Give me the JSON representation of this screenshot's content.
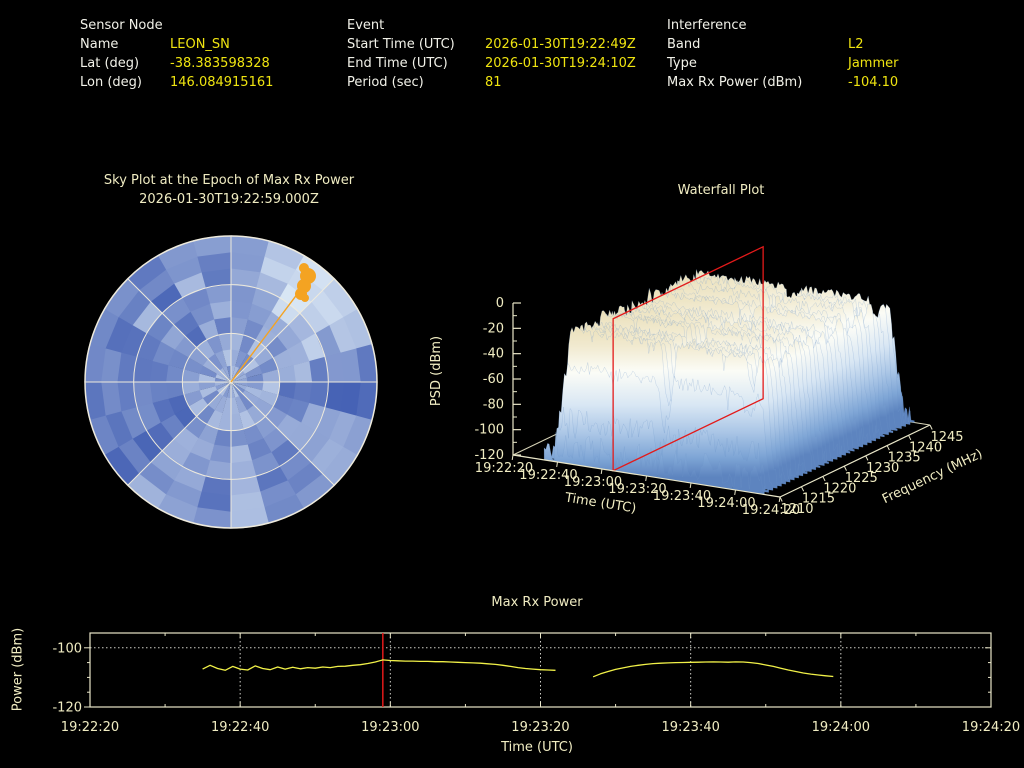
{
  "header": {
    "sensor": {
      "title": "Sensor Node",
      "rows": [
        {
          "label": "Name",
          "value": "LEON_SN"
        },
        {
          "label": "Lat (deg)",
          "value": "-38.383598328"
        },
        {
          "label": "Lon (deg)",
          "value": "146.084915161"
        }
      ]
    },
    "event": {
      "title": "Event",
      "rows": [
        {
          "label": "Start Time (UTC)",
          "value": "2026-01-30T19:22:49Z"
        },
        {
          "label": "End Time (UTC)",
          "value": "2026-01-30T19:24:10Z"
        },
        {
          "label": "Period (sec)",
          "value": "81"
        }
      ]
    },
    "interference": {
      "title": "Interference",
      "rows": [
        {
          "label": "Band",
          "value": "L2"
        },
        {
          "label": "Type",
          "value": "Jammer"
        },
        {
          "label": "Max Rx Power (dBm)",
          "value": "-104.10"
        }
      ]
    }
  },
  "sky": {
    "title_line1": "Sky Plot at the Epoch of Max Rx Power",
    "title_line2": "2026-01-30T19:22:59.000Z"
  },
  "waterfall": {
    "title": "Waterfall Plot",
    "zlabel": "PSD (dBm)",
    "xlabel": "Time (UTC)",
    "ylabel": "Frequency (MHz)"
  },
  "power": {
    "title": "Max Rx Power",
    "ylabel": "Power (dBm)",
    "xlabel": "Time (UTC)"
  },
  "colors": {
    "label_white": "#f2f2e9",
    "value_yellow": "#efe410",
    "cream": "#f0ecc2",
    "axis": "#e9e6c8",
    "grid_dotted": "#cfcfc8",
    "series_yellow": "#f1f148",
    "epoch_red": "#e31a1a",
    "sky_dark_blue": "#3c59b0",
    "sky_light_blue": "#ddeaf6",
    "marker_orange": "#f4a322",
    "surface_stops": [
      "#e8dcb2",
      "#f1ead0",
      "#fbfcf6",
      "#d9e7f4",
      "#adc8e7",
      "#7fa6d6",
      "#5d84bf"
    ]
  },
  "chart_data": [
    {
      "type": "heatmap",
      "name": "sky_plot_polar_heatmap",
      "title": "Sky Plot at the Epoch of Max Rx Power 2026-01-30T19:22:59.000Z",
      "coords": "polar azimuth(clockwise from North) x elevation",
      "elevation_rings_deg": [
        0,
        30,
        60
      ],
      "azimuth_spokes_deg_step": 45,
      "bins": {
        "azimuth": 24,
        "radial": 9
      },
      "cells": "procedural blue noise, seed 11, streaked by azimuth column",
      "palette": [
        "#3c59b0",
        "#ddeaf6"
      ],
      "jammer_marker": {
        "azimuth_deg": 37,
        "elevation_deg": 12,
        "radius_frac": 0.86,
        "color": "#f4a322",
        "ray_from_center": true
      }
    },
    {
      "type": "heatmap",
      "name": "waterfall_3d_surface",
      "title": "Waterfall Plot",
      "xlabel": "Time (UTC)",
      "ylabel": "Frequency (MHz)",
      "zlabel": "PSD (dBm)",
      "time_ticks": [
        "19:22:20",
        "19:22:40",
        "19:23:00",
        "19:23:20",
        "19:23:40",
        "19:24:00",
        "19:24:20"
      ],
      "freq_ticks": [
        "1210",
        "1215",
        "1220",
        "1225",
        "1230",
        "1235",
        "1240",
        "1245"
      ],
      "z_ticks": [
        "0",
        "-20",
        "-40",
        "-60",
        "-80",
        "-100",
        "-120"
      ],
      "zlim": [
        -120,
        0
      ],
      "freq_range_mhz": [
        1210,
        1245
      ],
      "surface": "plateau near -25 dBm PSD across 1213-1242 MHz from ~19:22:34 to ~19:24:07, noisy blue edges falling to -120, notch near 19:23:25",
      "epoch_slice": {
        "label": "red plane at epoch of max Rx power",
        "spans": "full frequency and PSD range",
        "color": "#e31a1a"
      },
      "gen": {
        "seed": 23,
        "rows": 36,
        "t_start_sec": 14,
        "t_end_sec": 113,
        "plateau_db_above_floor": 95,
        "gap_sec": [
          62,
          67
        ]
      }
    },
    {
      "type": "line",
      "name": "max_rx_power_timeseries",
      "title": "Max Rx Power",
      "xlabel": "Time (UTC)",
      "ylabel": "Power (dBm)",
      "x_ticks": [
        "19:22:20",
        "19:22:40",
        "19:23:00",
        "19:23:20",
        "19:23:40",
        "19:24:00",
        "19:24:20"
      ],
      "y_ticks": [
        -100,
        -120
      ],
      "ylim": [
        -120,
        -95
      ],
      "x_axis_seconds_after_192220": [
        0,
        120
      ],
      "epoch_line_t_sec": 39,
      "epoch_value_dbm": -104.1,
      "grid": "dotted at -100 dBm and at each 20 s tick",
      "segments": [
        {
          "points": [
            [
              15,
              -107.2
            ],
            [
              16,
              -105.9
            ],
            [
              17,
              -107.0
            ],
            [
              18,
              -107.6
            ],
            [
              19,
              -106.3
            ],
            [
              20,
              -107.2
            ],
            [
              21,
              -107.5
            ],
            [
              22,
              -106.1
            ],
            [
              23,
              -107.0
            ],
            [
              24,
              -107.4
            ],
            [
              25,
              -106.5
            ],
            [
              26,
              -107.2
            ],
            [
              27,
              -106.6
            ],
            [
              28,
              -107.1
            ],
            [
              29,
              -106.7
            ],
            [
              30,
              -106.9
            ],
            [
              31,
              -106.5
            ],
            [
              32,
              -106.7
            ],
            [
              33,
              -106.3
            ],
            [
              34,
              -106.2
            ],
            [
              35,
              -105.9
            ],
            [
              36,
              -105.7
            ],
            [
              37,
              -105.3
            ],
            [
              38,
              -104.8
            ],
            [
              39,
              -104.1
            ],
            [
              40,
              -104.3
            ],
            [
              41,
              -104.4
            ],
            [
              42,
              -104.5
            ],
            [
              43,
              -104.5
            ],
            [
              44,
              -104.6
            ],
            [
              45,
              -104.6
            ],
            [
              46,
              -104.7
            ],
            [
              47,
              -104.7
            ],
            [
              48,
              -104.8
            ],
            [
              49,
              -104.9
            ],
            [
              50,
              -105.0
            ],
            [
              51,
              -105.1
            ],
            [
              52,
              -105.2
            ],
            [
              53,
              -105.4
            ],
            [
              54,
              -105.6
            ],
            [
              55,
              -105.9
            ],
            [
              56,
              -106.3
            ],
            [
              57,
              -106.7
            ],
            [
              58,
              -107.0
            ],
            [
              59,
              -107.2
            ],
            [
              60,
              -107.4
            ],
            [
              61,
              -107.5
            ],
            [
              62,
              -107.6
            ]
          ]
        },
        {
          "points": [
            [
              67,
              -109.8
            ],
            [
              68,
              -108.8
            ],
            [
              69,
              -108.0
            ],
            [
              70,
              -107.3
            ],
            [
              71,
              -106.8
            ],
            [
              72,
              -106.3
            ],
            [
              73,
              -105.9
            ],
            [
              74,
              -105.6
            ],
            [
              75,
              -105.35
            ],
            [
              76,
              -105.2
            ],
            [
              77,
              -105.1
            ],
            [
              78,
              -105.0
            ],
            [
              79,
              -104.95
            ],
            [
              80,
              -104.9
            ],
            [
              81,
              -104.85
            ],
            [
              82,
              -104.8
            ],
            [
              83,
              -104.75
            ],
            [
              84,
              -104.8
            ],
            [
              85,
              -104.85
            ],
            [
              86,
              -104.75
            ],
            [
              87,
              -104.8
            ],
            [
              88,
              -105.0
            ],
            [
              89,
              -105.3
            ],
            [
              90,
              -105.8
            ],
            [
              91,
              -106.3
            ],
            [
              92,
              -106.9
            ],
            [
              93,
              -107.5
            ],
            [
              94,
              -108.0
            ],
            [
              95,
              -108.5
            ],
            [
              96,
              -108.9
            ],
            [
              97,
              -109.2
            ],
            [
              98,
              -109.45
            ],
            [
              99,
              -109.7
            ]
          ]
        }
      ]
    }
  ]
}
